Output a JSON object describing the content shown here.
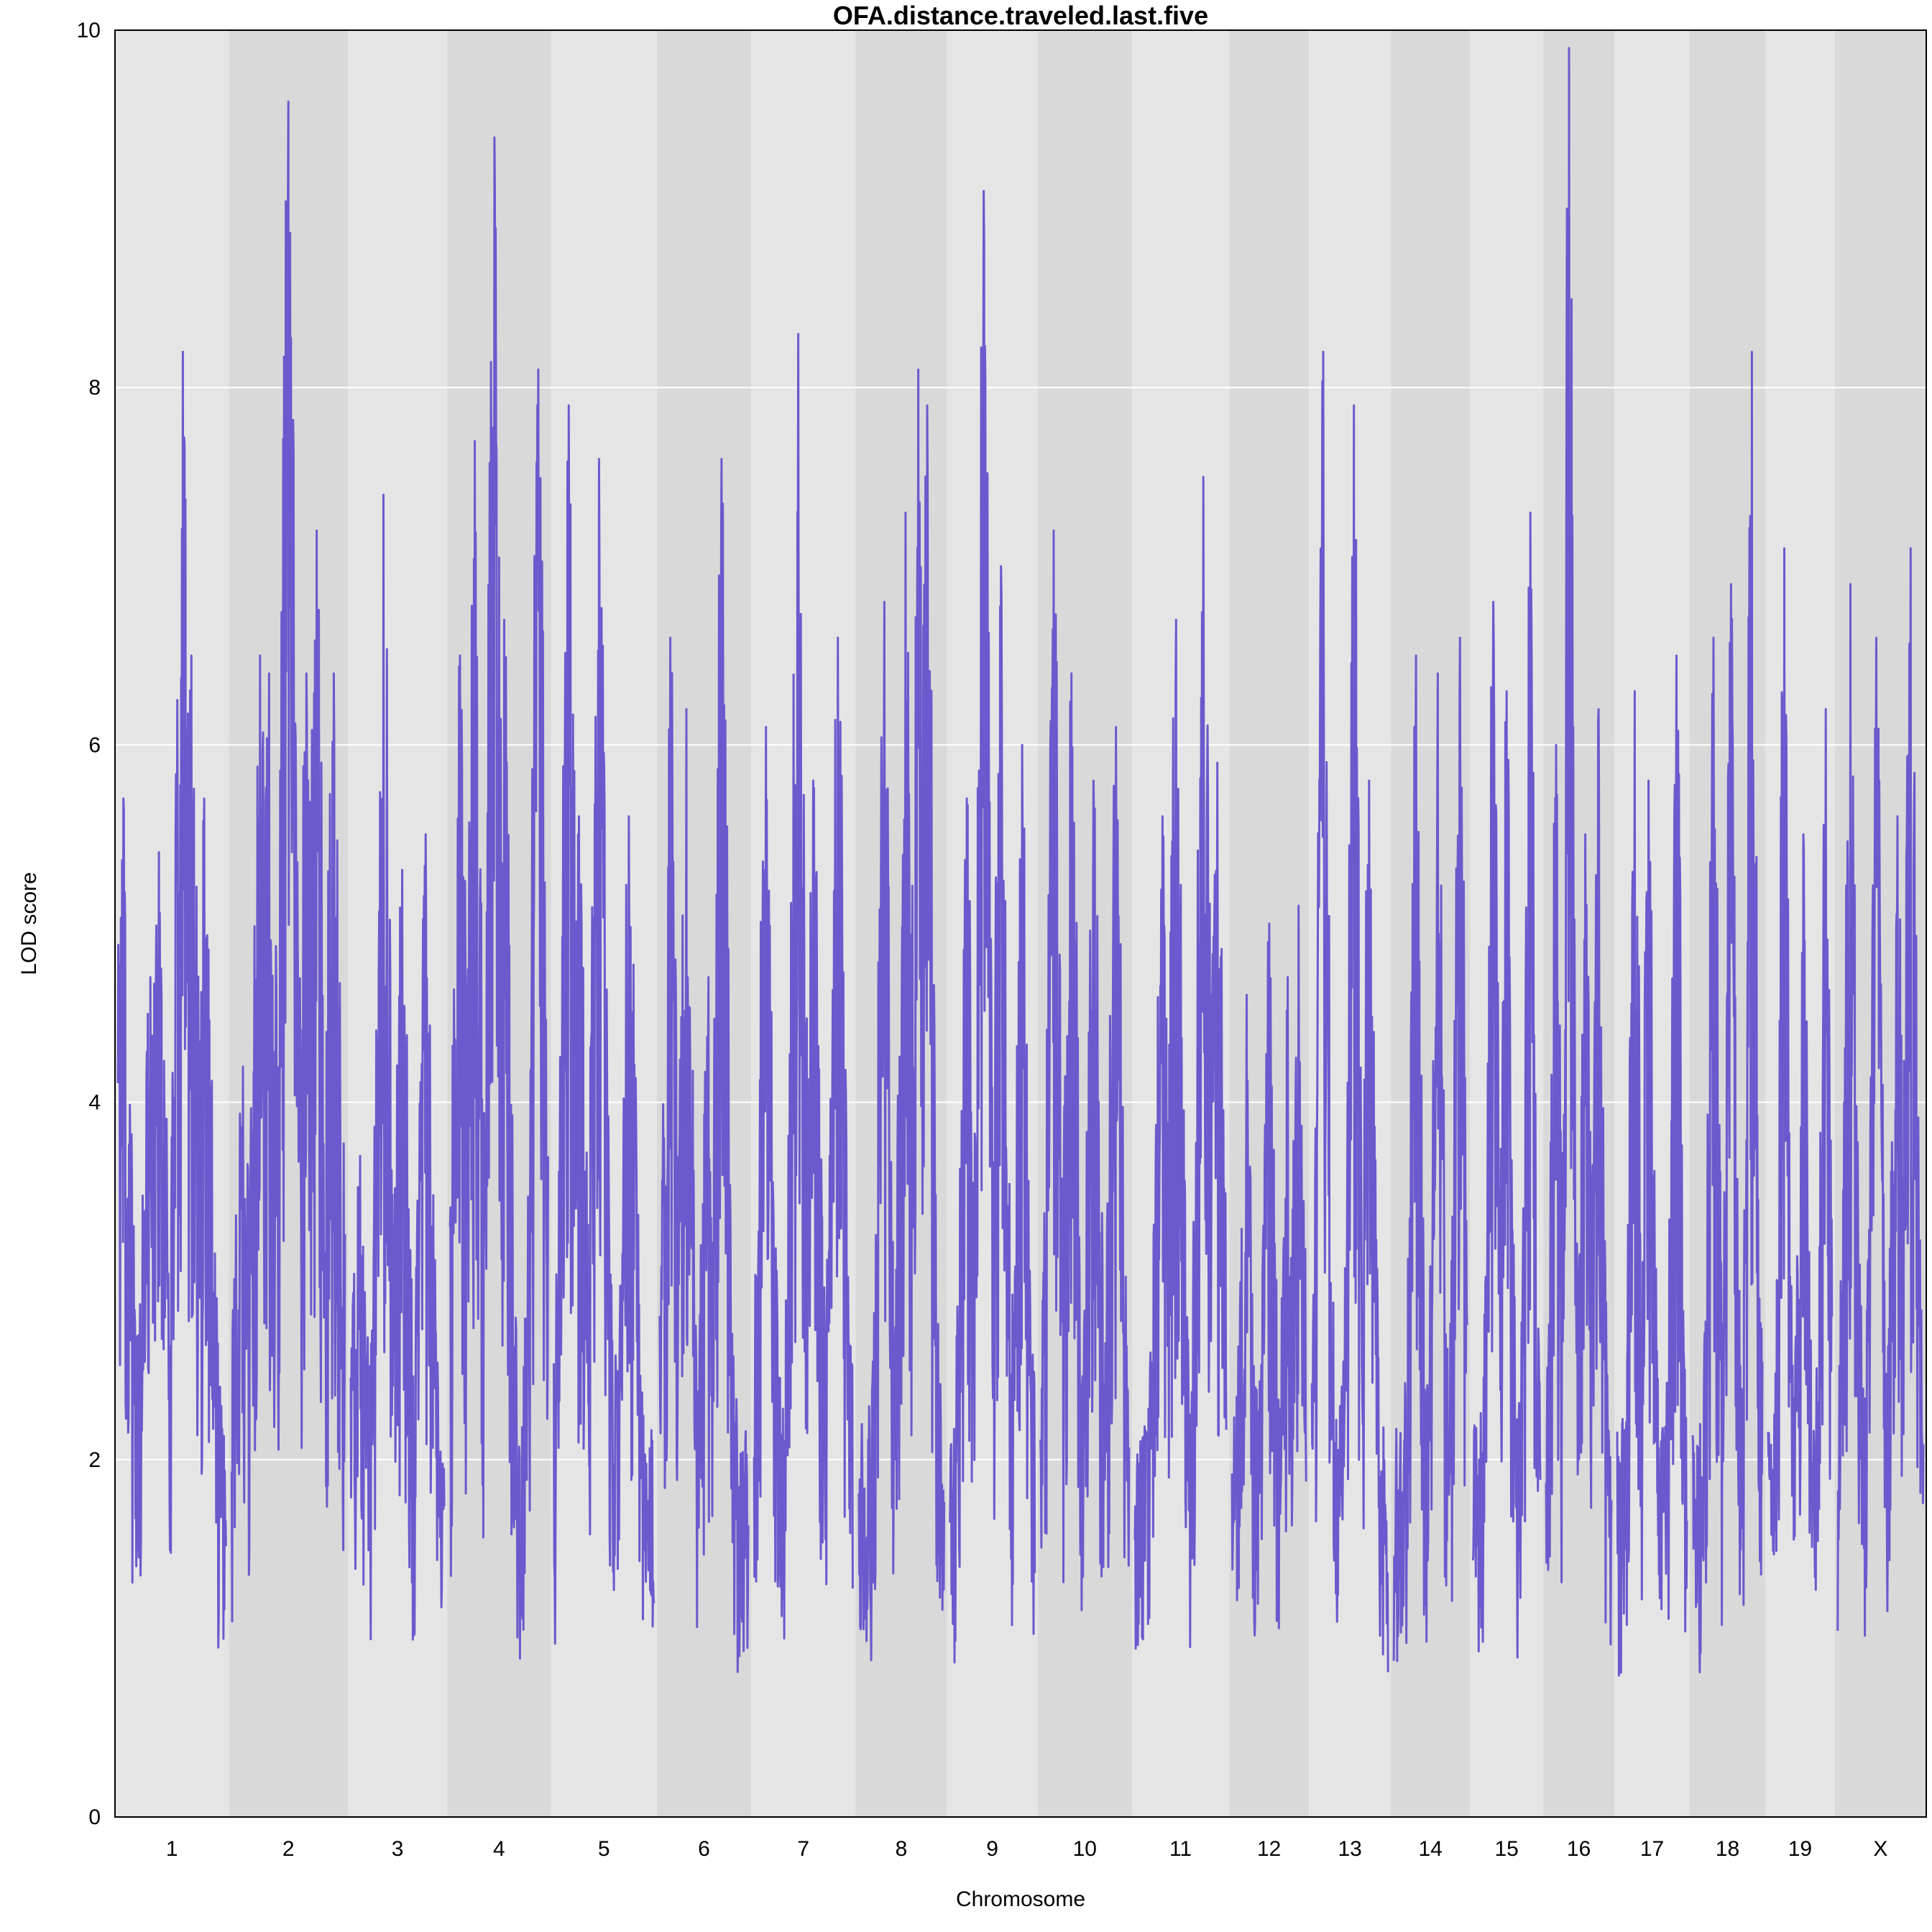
{
  "chart_data": {
    "type": "line",
    "title": "OFA.distance.traveled.last.five",
    "xlabel": "Chromosome",
    "ylabel": "LOD score",
    "ylim": [
      0,
      10
    ],
    "yticks": [
      0,
      2,
      4,
      6,
      8,
      10
    ],
    "grid": true,
    "colors": {
      "line": "#6a5acd",
      "band_light": "#e5e5e5",
      "band_dark": "#d9d9d9",
      "gridline": "#ffffff",
      "frame": "#000000"
    },
    "chromosomes": [
      {
        "label": "1",
        "peaks": [
          {
            "pos": 0.05,
            "lod": 5.7
          },
          {
            "pos": 0.3,
            "lod": 4.7
          },
          {
            "pos": 0.38,
            "lod": 5.4
          },
          {
            "pos": 0.6,
            "lod": 8.2
          },
          {
            "pos": 0.68,
            "lod": 6.5
          },
          {
            "pos": 0.8,
            "lod": 5.7
          }
        ]
      },
      {
        "label": "2",
        "peaks": [
          {
            "pos": 0.1,
            "lod": 4.2
          },
          {
            "pos": 0.25,
            "lod": 6.5
          },
          {
            "pos": 0.33,
            "lod": 6.4
          },
          {
            "pos": 0.5,
            "lod": 9.6
          },
          {
            "pos": 0.66,
            "lod": 6.4
          },
          {
            "pos": 0.75,
            "lod": 7.2
          },
          {
            "pos": 0.9,
            "lod": 6.4
          }
        ]
      },
      {
        "label": "3",
        "peaks": [
          {
            "pos": 0.1,
            "lod": 3.7
          },
          {
            "pos": 0.35,
            "lod": 7.4
          },
          {
            "pos": 0.55,
            "lod": 5.3
          },
          {
            "pos": 0.8,
            "lod": 5.5
          }
        ]
      },
      {
        "label": "4",
        "peaks": [
          {
            "pos": 0.1,
            "lod": 6.5
          },
          {
            "pos": 0.25,
            "lod": 7.7
          },
          {
            "pos": 0.45,
            "lod": 9.4
          },
          {
            "pos": 0.55,
            "lod": 6.7
          },
          {
            "pos": 0.9,
            "lod": 8.1
          }
        ]
      },
      {
        "label": "5",
        "peaks": [
          {
            "pos": 0.15,
            "lod": 7.9
          },
          {
            "pos": 0.25,
            "lod": 5.6
          },
          {
            "pos": 0.45,
            "lod": 7.6
          },
          {
            "pos": 0.75,
            "lod": 5.6
          }
        ]
      },
      {
        "label": "6",
        "peaks": [
          {
            "pos": 0.12,
            "lod": 6.6
          },
          {
            "pos": 0.3,
            "lod": 6.2
          },
          {
            "pos": 0.55,
            "lod": 4.7
          },
          {
            "pos": 0.7,
            "lod": 7.6
          }
        ]
      },
      {
        "label": "7",
        "peaks": [
          {
            "pos": 0.12,
            "lod": 6.1
          },
          {
            "pos": 0.45,
            "lod": 8.3
          },
          {
            "pos": 0.6,
            "lod": 5.8
          },
          {
            "pos": 0.85,
            "lod": 6.6
          }
        ]
      },
      {
        "label": "8",
        "peaks": [
          {
            "pos": 0.3,
            "lod": 6.8
          },
          {
            "pos": 0.55,
            "lod": 7.3
          },
          {
            "pos": 0.7,
            "lod": 8.1
          },
          {
            "pos": 0.8,
            "lod": 7.9
          }
        ]
      },
      {
        "label": "9",
        "peaks": [
          {
            "pos": 0.2,
            "lod": 5.7
          },
          {
            "pos": 0.4,
            "lod": 9.1
          },
          {
            "pos": 0.6,
            "lod": 7.0
          },
          {
            "pos": 0.85,
            "lod": 6.0
          }
        ]
      },
      {
        "label": "10",
        "peaks": [
          {
            "pos": 0.15,
            "lod": 7.2
          },
          {
            "pos": 0.35,
            "lod": 6.4
          },
          {
            "pos": 0.6,
            "lod": 5.8
          },
          {
            "pos": 0.85,
            "lod": 6.1
          }
        ]
      },
      {
        "label": "11",
        "peaks": [
          {
            "pos": 0.3,
            "lod": 5.6
          },
          {
            "pos": 0.45,
            "lod": 6.7
          },
          {
            "pos": 0.75,
            "lod": 7.5
          },
          {
            "pos": 0.9,
            "lod": 5.9
          }
        ]
      },
      {
        "label": "12",
        "peaks": [
          {
            "pos": 0.2,
            "lod": 4.6
          },
          {
            "pos": 0.5,
            "lod": 5.0
          },
          {
            "pos": 0.75,
            "lod": 4.7
          },
          {
            "pos": 0.9,
            "lod": 5.1
          }
        ]
      },
      {
        "label": "13",
        "peaks": [
          {
            "pos": 0.15,
            "lod": 8.2
          },
          {
            "pos": 0.55,
            "lod": 7.9
          },
          {
            "pos": 0.75,
            "lod": 5.8
          }
        ]
      },
      {
        "label": "14",
        "peaks": [
          {
            "pos": 0.3,
            "lod": 6.5
          },
          {
            "pos": 0.6,
            "lod": 6.4
          },
          {
            "pos": 0.9,
            "lod": 6.6
          }
        ]
      },
      {
        "label": "15",
        "peaks": [
          {
            "pos": 0.3,
            "lod": 6.8
          },
          {
            "pos": 0.5,
            "lod": 6.3
          },
          {
            "pos": 0.85,
            "lod": 7.3
          }
        ]
      },
      {
        "label": "16",
        "peaks": [
          {
            "pos": 0.15,
            "lod": 6.0
          },
          {
            "pos": 0.35,
            "lod": 9.9
          },
          {
            "pos": 0.6,
            "lod": 5.5
          },
          {
            "pos": 0.8,
            "lod": 6.2
          }
        ]
      },
      {
        "label": "17",
        "peaks": [
          {
            "pos": 0.25,
            "lod": 6.3
          },
          {
            "pos": 0.45,
            "lod": 5.8
          },
          {
            "pos": 0.85,
            "lod": 6.5
          }
        ]
      },
      {
        "label": "18",
        "peaks": [
          {
            "pos": 0.3,
            "lod": 6.6
          },
          {
            "pos": 0.55,
            "lod": 6.9
          },
          {
            "pos": 0.85,
            "lod": 8.2
          }
        ]
      },
      {
        "label": "19",
        "peaks": [
          {
            "pos": 0.25,
            "lod": 7.1
          },
          {
            "pos": 0.55,
            "lod": 5.5
          },
          {
            "pos": 0.9,
            "lod": 6.2
          }
        ]
      },
      {
        "label": "X",
        "peaks": [
          {
            "pos": 0.15,
            "lod": 6.9
          },
          {
            "pos": 0.45,
            "lod": 6.6
          },
          {
            "pos": 0.7,
            "lod": 5.6
          },
          {
            "pos": 0.85,
            "lod": 7.1
          }
        ]
      }
    ]
  }
}
